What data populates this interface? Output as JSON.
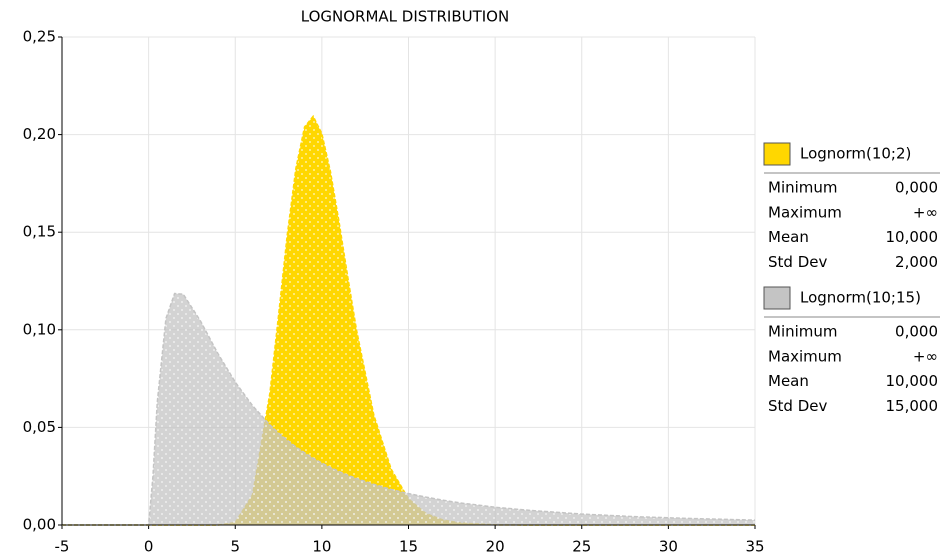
{
  "chart_data": {
    "type": "area",
    "title": "LOGNORMAL DISTRIBUTION",
    "x": [
      -5,
      0,
      0.25,
      0.5,
      1,
      1.5,
      2,
      3,
      4,
      5,
      6,
      7,
      7.5,
      8,
      8.5,
      9,
      9.5,
      10,
      10.5,
      11,
      11.5,
      12,
      13,
      14,
      15,
      16,
      17,
      18,
      20,
      22,
      25,
      28,
      31,
      35
    ],
    "series": [
      {
        "name": "Lognorm(10;2)",
        "color": "#ffd700",
        "values": [
          0,
          0,
          0,
          0,
          0,
          0,
          0,
          0,
          0,
          0.0012,
          0.0155,
          0.0676,
          0.1075,
          0.1485,
          0.1827,
          0.2039,
          0.2094,
          0.2005,
          0.1808,
          0.1548,
          0.1268,
          0.0999,
          0.0563,
          0.0286,
          0.0134,
          0.0059,
          0.0025,
          0.001,
          0.0001,
          0,
          0,
          0,
          0,
          0
        ],
        "stats": [
          [
            "Minimum",
            "0,000"
          ],
          [
            "Maximum",
            "+∞"
          ],
          [
            "Mean",
            "10,000"
          ],
          [
            "Std Dev",
            "2,000"
          ]
        ]
      },
      {
        "name": "Lognorm(10;15)",
        "color": "#c4c4c4",
        "values": [
          0,
          0,
          0.025,
          0.063,
          0.1058,
          0.1186,
          0.1182,
          0.1044,
          0.0878,
          0.0732,
          0.0611,
          0.0513,
          0.0471,
          0.0434,
          0.04,
          0.037,
          0.0342,
          0.0317,
          0.0294,
          0.0274,
          0.0255,
          0.0238,
          0.0208,
          0.0182,
          0.0161,
          0.0143,
          0.0127,
          0.0113,
          0.0091,
          0.0075,
          0.0056,
          0.0043,
          0.0034,
          0.0025
        ],
        "stats": [
          [
            "Minimum",
            "0,000"
          ],
          [
            "Maximum",
            "+∞"
          ],
          [
            "Mean",
            "10,000"
          ],
          [
            "Std Dev",
            "15,000"
          ]
        ]
      }
    ],
    "xlim": [
      -5,
      35
    ],
    "xticks": [
      -5,
      0,
      5,
      10,
      15,
      20,
      25,
      30,
      35
    ],
    "ylim": [
      0,
      0.25
    ],
    "yticks": [
      {
        "value": 0,
        "label": "0,00"
      },
      {
        "value": 0.05,
        "label": "0,05"
      },
      {
        "value": 0.1,
        "label": "0,10"
      },
      {
        "value": 0.15,
        "label": "0,15"
      },
      {
        "value": 0.2,
        "label": "0,20"
      },
      {
        "value": 0.25,
        "label": "0,25"
      }
    ],
    "grid": true
  }
}
